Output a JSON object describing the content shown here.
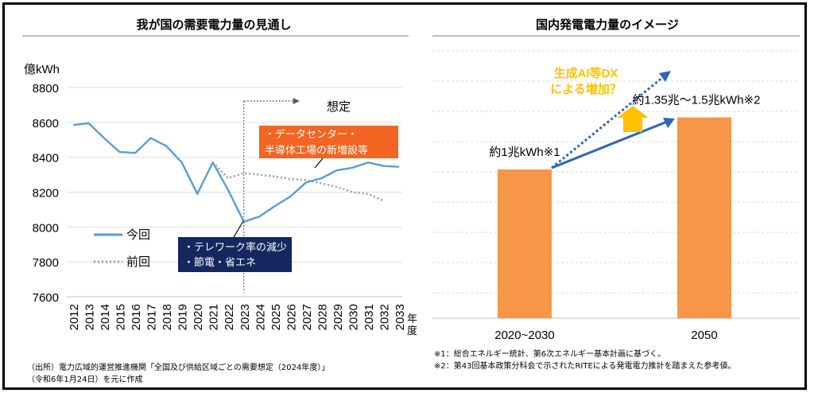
{
  "chart_data": [
    {
      "type": "line",
      "title": "我が国の需要電力量の見通し",
      "ylabel": "億kWh",
      "xlabel": "年度",
      "ylim": [
        7600,
        8800
      ],
      "yticks": [
        "7600",
        "7800",
        "8000",
        "8200",
        "8400",
        "8600",
        "8800"
      ],
      "categories": [
        "2012",
        "2013",
        "2014",
        "2015",
        "2016",
        "2017",
        "2018",
        "2019",
        "2020",
        "2021",
        "2022",
        "2023",
        "2024",
        "2025",
        "2026",
        "2027",
        "2028",
        "2029",
        "2030",
        "2031",
        "2032",
        "2033"
      ],
      "series": [
        {
          "name": "今回",
          "color": "#5b9bd5",
          "style": "solid",
          "values": [
            8585,
            8595,
            8510,
            8430,
            8425,
            8510,
            8465,
            8370,
            8190,
            8370,
            8210,
            8030,
            8060,
            8120,
            8175,
            8255,
            8280,
            8325,
            8340,
            8370,
            8350,
            8345
          ]
        },
        {
          "name": "前回",
          "color": "#999999",
          "style": "dotted",
          "values": [
            null,
            null,
            null,
            null,
            null,
            null,
            null,
            null,
            null,
            8370,
            8280,
            8310,
            8300,
            8290,
            8275,
            8270,
            8250,
            8230,
            8200,
            8190,
            8150,
            null
          ]
        }
      ],
      "annotations": {
        "forecast_label": "想定",
        "orange_box": [
          "・データセンター・",
          "半導体工場の新増設等"
        ],
        "navy_box": [
          "・テレワーク率の減少",
          "・節電・省エネ"
        ]
      },
      "legend": "bottom-left",
      "source": [
        "（出所）電力広域的運営推進機関「全国及び供給区域ごとの需要想定（2024年度）」",
        "（令和6年1月24日）を元に作成"
      ]
    },
    {
      "type": "bar",
      "title": "国内発電電力量のイメージ",
      "categories": [
        "2020~2030",
        "2050"
      ],
      "values": [
        1.0,
        1.35
      ],
      "bar_color": "#f79646",
      "data_labels": [
        "約1兆kWh※1",
        "約1.35兆～1.5兆kWh※2"
      ],
      "dx_label": [
        "生成AI等DX",
        "による増加？"
      ],
      "footnotes": [
        "※1：総合エネルギー統計、第6次エネルギー基本計画に基づく。",
        "※2：第43回基本政策分科会で示されたRITEによる発電電力推計を踏まえた参考値。"
      ]
    }
  ]
}
